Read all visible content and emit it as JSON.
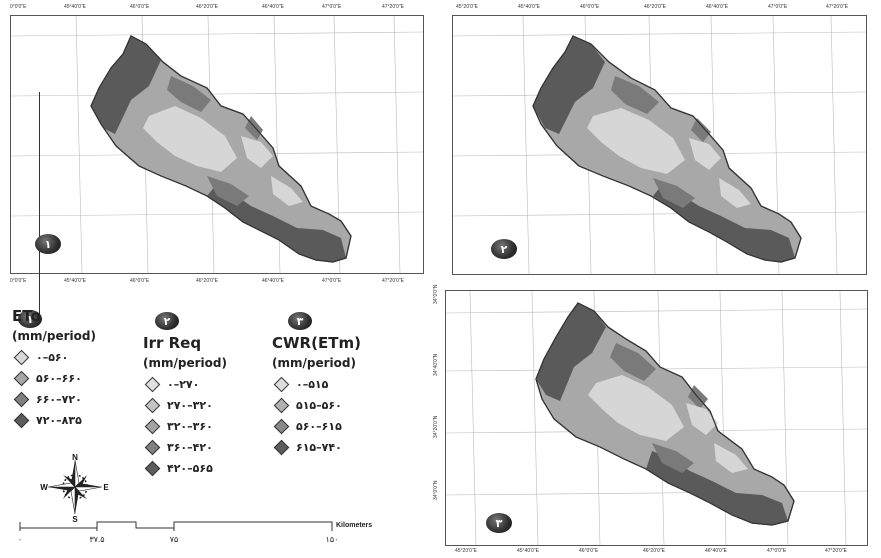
{
  "panels": [
    {
      "id": "1",
      "badge": "۱",
      "top_ticks": [
        "0°0'0\"E",
        "45°40'0\"E",
        "46°0'0\"E",
        "46°20'0\"E",
        "46°40'0\"E",
        "47°0'0\"E",
        "47°20'0\"E"
      ],
      "bottom_ticks": [
        "0°0'0\"E",
        "45°40'0\"E",
        "46°0'0\"E",
        "46°20'0\"E",
        "46°40'0\"E",
        "47°0'0\"E",
        "47°20'0\"E"
      ]
    },
    {
      "id": "2",
      "badge": "۲",
      "top_ticks": [
        "45°20'0\"E",
        "45°40'0\"E",
        "46°0'0\"E",
        "46°20'0\"E",
        "46°40'0\"E",
        "47°0'0\"E",
        "47°20'0\"E"
      ]
    },
    {
      "id": "3",
      "badge": "۳",
      "left_ticks": [
        "34°0'0\"N",
        "34°40'0\"N",
        "34°20'0\"N",
        "34°0'0\"N"
      ],
      "bottom_ticks": [
        "45°20'0\"E",
        "45°40'0\"E",
        "46°0'0\"E",
        "46°20'0\"E",
        "46°40'0\"E",
        "47°0'0\"E",
        "47°20'0\"E"
      ]
    }
  ],
  "legends": [
    {
      "badge": "۱",
      "title": "ETo",
      "unit": "(mm/period)",
      "items": [
        {
          "label": "۰–۵۶۰",
          "color": "#d9d9d9"
        },
        {
          "label": "۵۶۰–۶۶۰",
          "color": "#a6a6a6"
        },
        {
          "label": "۶۶۰–۷۲۰",
          "color": "#808080"
        },
        {
          "label": "۷۲۰–۸۳۵",
          "color": "#5c5c5c"
        }
      ]
    },
    {
      "badge": "۲",
      "title": "Irr Req",
      "unit": "(mm/period)",
      "items": [
        {
          "label": "۰–۲۷۰",
          "color": "#e0e0e0"
        },
        {
          "label": "۲۷۰–۳۲۰",
          "color": "#c4c4c4"
        },
        {
          "label": "۳۲۰–۳۶۰",
          "color": "#a3a3a3"
        },
        {
          "label": "۳۶۰–۴۲۰",
          "color": "#808080"
        },
        {
          "label": "۴۲۰–۵۶۵",
          "color": "#5c5c5c"
        }
      ]
    },
    {
      "badge": "۳",
      "title": "CWR(ETm)",
      "unit": "(mm/period)",
      "items": [
        {
          "label": "۰–۵۱۵",
          "color": "#dcdcdc"
        },
        {
          "label": "۵۱۵–۵۶۰",
          "color": "#b0b0b0"
        },
        {
          "label": "۵۶۰–۶۱۵",
          "color": "#888888"
        },
        {
          "label": "۶۱۵–۷۴۰",
          "color": "#5c5c5c"
        }
      ]
    }
  ],
  "north_arrow": {
    "n": "N",
    "s": "S",
    "e": "E",
    "w": "W"
  },
  "scale_bar": {
    "labels": [
      "۰",
      "۳۷.۵",
      "۷۵",
      "۱۵۰"
    ],
    "unit": "Kilometers"
  },
  "colors": {
    "light": "#d6d6d6",
    "mid": "#a8a8a8",
    "dark": "#7a7a7a",
    "darkest": "#5a5a5a",
    "outline": "#333333"
  }
}
